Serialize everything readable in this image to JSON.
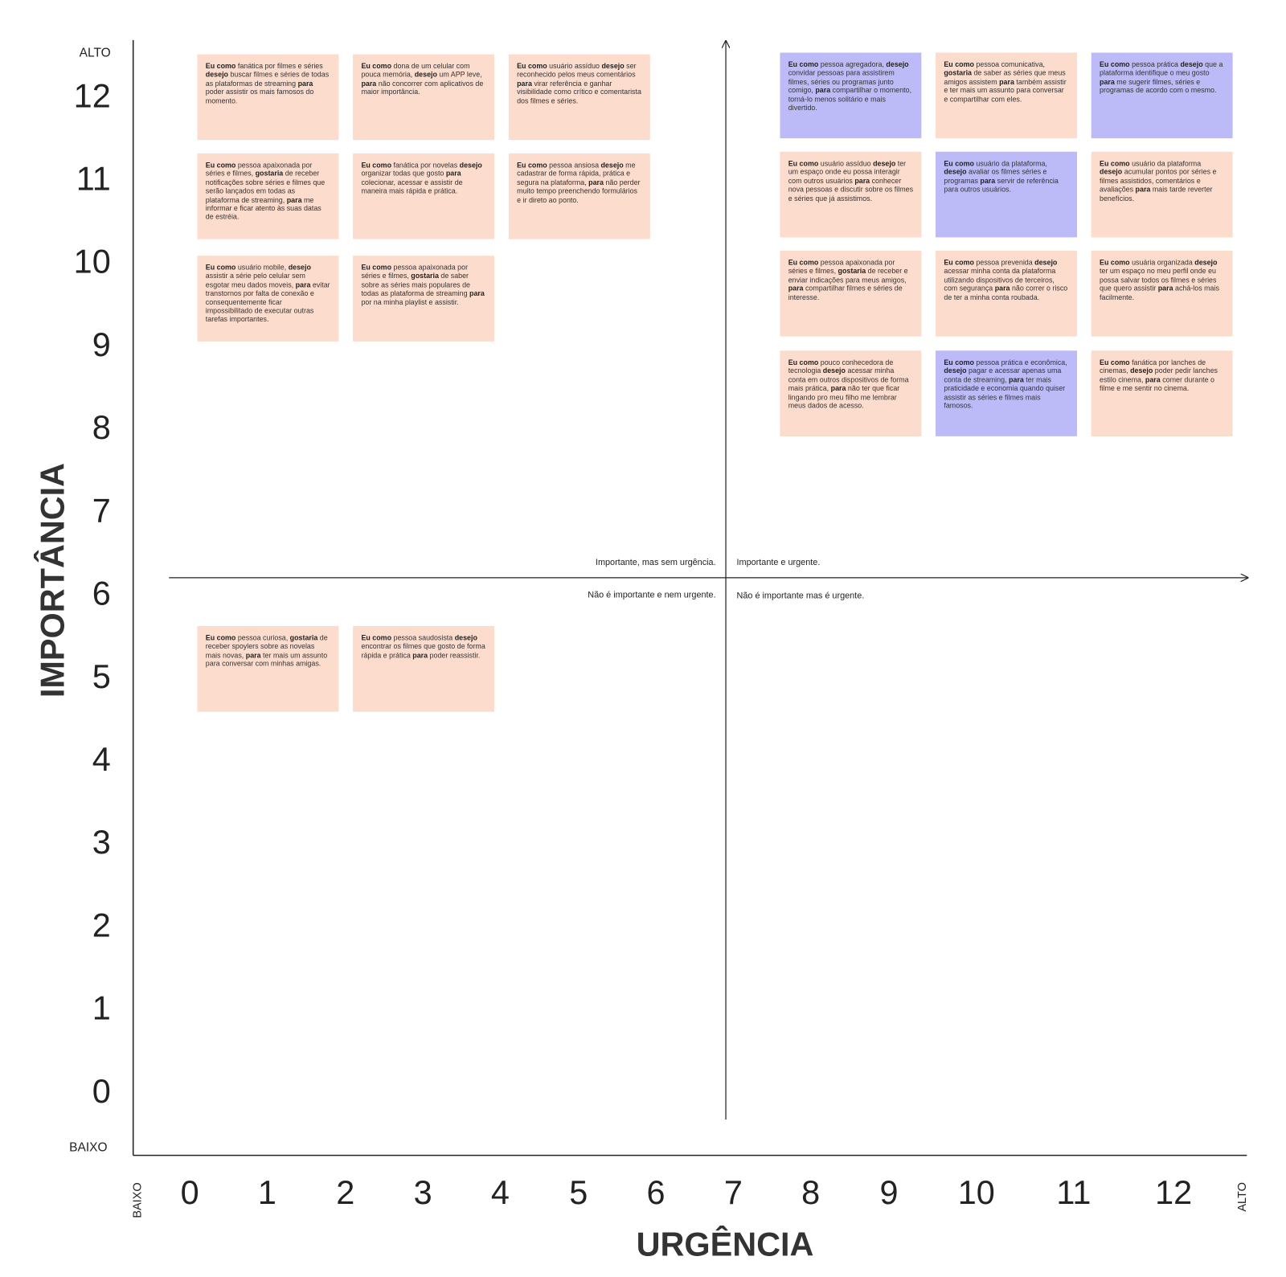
{
  "axes": {
    "y_title": "IMPORTÂNCIA",
    "x_title": "URGÊNCIA",
    "y_high": "ALTO",
    "y_low": "BAIXO",
    "x_high": "ALTO",
    "x_low": "BAIXO",
    "y_ticks": [
      0,
      1,
      2,
      3,
      4,
      5,
      6,
      7,
      8,
      9,
      10,
      11,
      12
    ],
    "x_ticks": [
      0,
      1,
      2,
      3,
      4,
      5,
      6,
      7,
      8,
      9,
      10,
      11,
      12
    ]
  },
  "quadrants": {
    "top_left": "Importante, mas sem urgência.",
    "top_right": "Importante e urgente.",
    "bottom_left": "Não é importante e nem urgente.",
    "bottom_right": "Não é  importante mas é urgente."
  },
  "top_left_notes": [
    {
      "color": "#fcdccc",
      "runs": [
        {
          "b": "Eu como"
        },
        {
          "t": " fanática por filmes e séries "
        },
        {
          "b": "desejo"
        },
        {
          "t": " buscar filmes e séries de todas as plataformas de streaming "
        },
        {
          "b": "para"
        },
        {
          "t": " poder assistir os mais famosos do momento."
        }
      ]
    },
    {
      "color": "#fcdccc",
      "runs": [
        {
          "b": "Eu como"
        },
        {
          "t": " dona de um celular com pouca memória, "
        },
        {
          "b": "desejo"
        },
        {
          "t": " um APP leve, "
        },
        {
          "b": "para"
        },
        {
          "t": " não concorrer com aplicativos de maior importância."
        }
      ]
    },
    {
      "color": "#fcdccc",
      "runs": [
        {
          "b": "Eu como"
        },
        {
          "t": " usuário assíduo "
        },
        {
          "b": "desejo"
        },
        {
          "t": " ser reconhecido pelos meus comentários "
        },
        {
          "b": "para"
        },
        {
          "t": " virar referência e ganhar visibilidade como crítico e comentarista dos filmes e séries."
        }
      ]
    },
    {
      "color": "#fcdccc",
      "runs": [
        {
          "b": "Eu como"
        },
        {
          "t": " pessoa apaixonada por séries e filmes, "
        },
        {
          "b": "gostaria"
        },
        {
          "t": " de receber notificações sobre séries e filmes que serão lançados em todas as plataforma de streaming, "
        },
        {
          "b": "para"
        },
        {
          "t": " me informar e ficar atento às suas datas de estréia."
        }
      ]
    },
    {
      "color": "#fcdccc",
      "runs": [
        {
          "b": "Eu como"
        },
        {
          "t": " fanática por novelas "
        },
        {
          "b": "desejo"
        },
        {
          "t": " organizar todas que gosto "
        },
        {
          "b": "para"
        },
        {
          "t": " colecionar, acessar e assistir de maneira mais rápida e prática."
        }
      ]
    },
    {
      "color": "#fcdccc",
      "runs": [
        {
          "b": "Eu como"
        },
        {
          "t": " pessoa ansiosa "
        },
        {
          "b": "desejo"
        },
        {
          "t": " me cadastrar de forma rápida, prática e segura na plataforma, "
        },
        {
          "b": "para"
        },
        {
          "t": " não perder muito tempo preenchendo formulários e ir direto ao ponto."
        }
      ]
    },
    {
      "color": "#fcdccc",
      "runs": [
        {
          "b": "Eu como"
        },
        {
          "t": " usuário mobile, "
        },
        {
          "b": "desejo"
        },
        {
          "t": " assistir a série pelo celular sem esgotar meu dados moveis, "
        },
        {
          "b": "para"
        },
        {
          "t": " evitar transtornos por falta de conexão e consequentemente ficar impossibilitado de executar outras tarefas importantes."
        }
      ]
    },
    {
      "color": "#fcdccc",
      "runs": [
        {
          "b": "Eu como"
        },
        {
          "t": " pessoa apaixonada por séries e filmes, "
        },
        {
          "b": "gostaria"
        },
        {
          "t": " de saber sobre as séries mais populares de todas as plataforma de streaming "
        },
        {
          "b": "para"
        },
        {
          "t": " por na minha playlist e assistir."
        }
      ]
    }
  ],
  "bottom_left_notes": [
    {
      "color": "#fcdccc",
      "runs": [
        {
          "b": "Eu como"
        },
        {
          "t": " pessoa curiosa, "
        },
        {
          "b": "gostaria"
        },
        {
          "t": " de receber spoylers sobre as novelas mais novas, "
        },
        {
          "b": "para"
        },
        {
          "t": " ter mais um assunto para conversar com minhas amigas."
        }
      ]
    },
    {
      "color": "#fcdccc",
      "runs": [
        {
          "b": "Eu como"
        },
        {
          "t": " pessoa saudosista "
        },
        {
          "b": "desejo"
        },
        {
          "t": " encontrar os filmes que gosto de forma rápida e prática "
        },
        {
          "b": "para"
        },
        {
          "t": " poder reassistir."
        }
      ]
    }
  ],
  "top_right_notes": [
    {
      "color": "#bcbbf8",
      "runs": [
        {
          "b": "Eu como"
        },
        {
          "t": " pessoa agregadora, "
        },
        {
          "b": "desejo"
        },
        {
          "t": " convidar pessoas para assistirem filmes, séries ou programas junto comigo, "
        },
        {
          "b": "para"
        },
        {
          "t": " compartilhar o momento, torná-lo menos solitário e mais divertido."
        }
      ]
    },
    {
      "color": "#fcdccc",
      "runs": [
        {
          "b": "Eu como"
        },
        {
          "t": " pessoa comunicativa, "
        },
        {
          "b": "gostaria"
        },
        {
          "t": " de saber as séries que meus amigos assistem "
        },
        {
          "b": "para"
        },
        {
          "t": " também assistir e ter mais um assunto para conversar e compartilhar com eles."
        }
      ]
    },
    {
      "color": "#bcbbf8",
      "runs": [
        {
          "b": "Eu como"
        },
        {
          "t": " pessoa prática "
        },
        {
          "b": "desejo"
        },
        {
          "t": " que a plataforma identifique o meu gosto "
        },
        {
          "b": "para"
        },
        {
          "t": " me sugerir filmes, séries e programas de acordo com o mesmo."
        }
      ]
    },
    {
      "color": "#fcdccc",
      "runs": [
        {
          "b": "Eu como"
        },
        {
          "t": " usuário assíduo "
        },
        {
          "b": "desejo"
        },
        {
          "t": " ter um espaço onde eu possa interagir com outros usuários "
        },
        {
          "b": "para"
        },
        {
          "t": " conhecer nova pessoas e discutir sobre os filmes e séries que já assistimos."
        }
      ]
    },
    {
      "color": "#bcbbf8",
      "runs": [
        {
          "b": "Eu como"
        },
        {
          "t": " usuário da plataforma, "
        },
        {
          "b": "desejo"
        },
        {
          "t": " avaliar os filmes séries e programas "
        },
        {
          "b": "para"
        },
        {
          "t": " servir de referência para outros usuários."
        }
      ]
    },
    {
      "color": "#fcdccc",
      "runs": [
        {
          "b": "Eu como"
        },
        {
          "t": " usuário da plataforma "
        },
        {
          "b": "desejo"
        },
        {
          "t": " acumular pontos por séries e filmes assistidos, comentários e avaliações "
        },
        {
          "b": "para"
        },
        {
          "t": " mais tarde reverter benefícios."
        }
      ]
    },
    {
      "color": "#fcdccc",
      "runs": [
        {
          "b": "Eu como"
        },
        {
          "t": " pessoa apaixonada por séries e filmes, "
        },
        {
          "b": "gostaria"
        },
        {
          "t": " de receber e enviar indicações para meus amigos, "
        },
        {
          "b": "para"
        },
        {
          "t": " compartilhar filmes e séries de interesse."
        }
      ]
    },
    {
      "color": "#fcdccc",
      "runs": [
        {
          "b": "Eu como"
        },
        {
          "t": " pessoa prevenida "
        },
        {
          "b": "desejo"
        },
        {
          "t": " acessar minha conta da plataforma utilizando dispositivos de terceiros, com segurança "
        },
        {
          "b": "para"
        },
        {
          "t": " não correr o risco de ter a minha conta roubada."
        }
      ]
    },
    {
      "color": "#fcdccc",
      "runs": [
        {
          "b": "Eu como"
        },
        {
          "t": " usuária organizada "
        },
        {
          "b": "desejo"
        },
        {
          "t": " ter um espaço no meu perfil onde eu possa salvar todos os filmes e séries que quero assistir "
        },
        {
          "b": "para"
        },
        {
          "t": " achá-los mais facilmente."
        }
      ]
    },
    {
      "color": "#fcdccc",
      "runs": [
        {
          "b": "Eu como"
        },
        {
          "t": " pouco conhecedora de tecnologia "
        },
        {
          "b": "desejo"
        },
        {
          "t": " acessar minha conta em outros dispositivos de forma mais prática, "
        },
        {
          "b": "para"
        },
        {
          "t": " não ter que ficar lingando pro meu filho me lembrar meus dados de acesso."
        }
      ]
    },
    {
      "color": "#bcbbf8",
      "runs": [
        {
          "b": "Eu como"
        },
        {
          "t": " pessoa prática e econômica, "
        },
        {
          "b": "desejo"
        },
        {
          "t": " pagar e acessar apenas uma conta de streaming, "
        },
        {
          "b": "para"
        },
        {
          "t": " ter mais praticidade e economia quando quiser assistir as séries e filmes mais famosos."
        }
      ]
    },
    {
      "color": "#fcdccc",
      "runs": [
        {
          "b": "Eu como"
        },
        {
          "t": " fanática por lanches de cinemas, "
        },
        {
          "b": "desejo"
        },
        {
          "t": " poder pedir lanches estilo cinema, "
        },
        {
          "b": "para"
        },
        {
          "t": " comer durante o filme e me sentir no cinema."
        }
      ]
    }
  ]
}
